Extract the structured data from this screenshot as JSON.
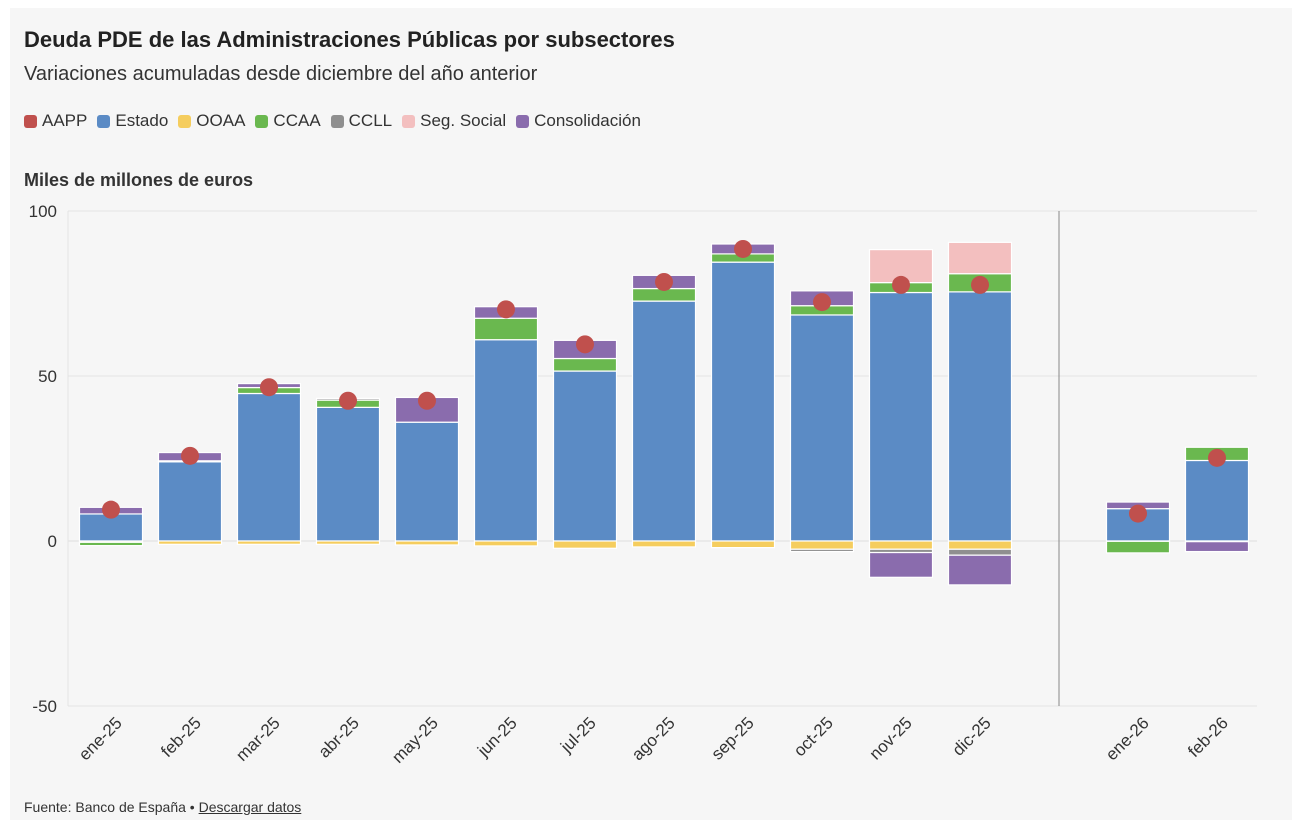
{
  "title": "Deuda PDE de las Administraciones Públicas por subsectores",
  "subtitle": "Variaciones acumuladas desde diciembre del año anterior",
  "unit_label": "Miles de millones de euros",
  "footer": {
    "source": "Fuente: Banco de España",
    "separator": " • ",
    "link": "Descargar datos"
  },
  "legend": [
    {
      "label": "AAPP",
      "color": "#c0504d"
    },
    {
      "label": "Estado",
      "color": "#5b8bc5"
    },
    {
      "label": "OOAA",
      "color": "#f5cd5e"
    },
    {
      "label": "CCAA",
      "color": "#6ab84f"
    },
    {
      "label": "CCLL",
      "color": "#8f8f8f"
    },
    {
      "label": "Seg. Social",
      "color": "#f3bfbf"
    },
    {
      "label": "Consolidación",
      "color": "#8a6cad"
    }
  ],
  "chart_data": {
    "type": "bar",
    "stacked": true,
    "categories": [
      "ene-25",
      "feb-25",
      "mar-25",
      "abr-25",
      "may-25",
      "jun-25",
      "jul-25",
      "ago-25",
      "sep-25",
      "oct-25",
      "nov-25",
      "dic-25",
      "ene-26",
      "feb-26"
    ],
    "ylim": [
      -50,
      100
    ],
    "yticks": [
      -50,
      0,
      50,
      100
    ],
    "grid": true,
    "legend_position": "top",
    "series": [
      {
        "name": "Estado",
        "color": "#5b8bc5",
        "values": [
          8.2,
          24.0,
          44.7,
          40.5,
          36.0,
          61.0,
          51.5,
          72.7,
          84.5,
          68.5,
          75.3,
          75.5,
          9.8,
          24.4
        ]
      },
      {
        "name": "OOAA",
        "color": "#f5cd5e",
        "values": [
          -0.4,
          -1.0,
          -1.0,
          -1.0,
          -1.2,
          -1.5,
          -2.2,
          -1.8,
          -2.0,
          -2.5,
          -2.5,
          -2.5,
          -0.1,
          -0.2
        ]
      },
      {
        "name": "CCAA",
        "color": "#6ab84f",
        "values": [
          -1.0,
          0.3,
          1.8,
          2.2,
          0.0,
          6.5,
          3.8,
          3.8,
          2.5,
          2.8,
          3.0,
          5.5,
          -3.5,
          4.0
        ]
      },
      {
        "name": "CCLL",
        "color": "#8f8f8f",
        "values": [
          0.0,
          0.0,
          0.0,
          0.5,
          0.0,
          0.0,
          0.0,
          0.0,
          0.0,
          -0.7,
          -1.0,
          -1.8,
          0.0,
          0.0
        ]
      },
      {
        "name": "Seg. Social",
        "color": "#f3bfbf",
        "values": [
          0.0,
          0.0,
          0.0,
          0.0,
          0.0,
          0.0,
          0.0,
          0.0,
          0.0,
          0.0,
          10.0,
          9.5,
          0.0,
          0.0
        ]
      },
      {
        "name": "Consolidación",
        "color": "#8a6cad",
        "values": [
          2.0,
          2.5,
          1.2,
          0.0,
          7.5,
          3.5,
          5.5,
          4.0,
          3.0,
          4.5,
          -7.5,
          -9.0,
          2.0,
          -3.0
        ]
      }
    ],
    "aapp": {
      "name": "AAPP",
      "color": "#c0504d",
      "values": [
        9.5,
        25.8,
        46.6,
        42.5,
        42.5,
        70.2,
        59.6,
        78.5,
        88.5,
        72.4,
        77.6,
        77.6,
        8.3,
        25.2
      ]
    },
    "separator_after": "dic-25"
  }
}
